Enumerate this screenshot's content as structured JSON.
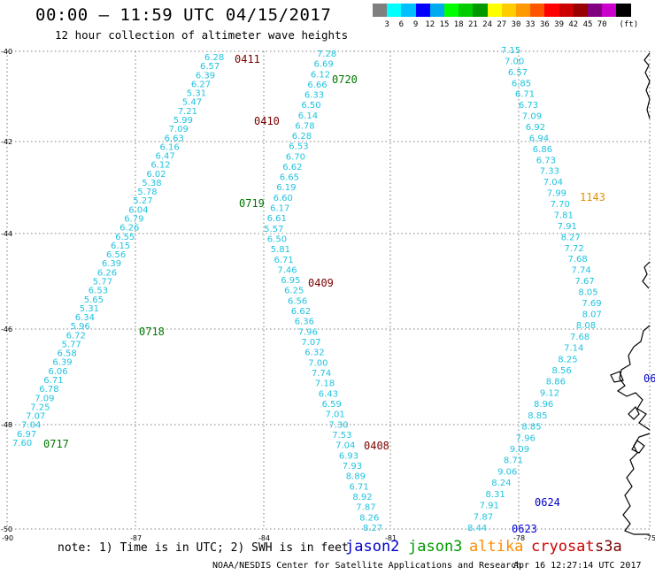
{
  "header": {
    "title": "00:00 – 11:59 UTC 04/15/2017",
    "subtitle": "12 hour collection of altimeter wave heights"
  },
  "color_scale": {
    "unit": "(ft)",
    "colors": [
      "#7f7f7f",
      "#00ffff",
      "#00bfff",
      "#0000ff",
      "#00aaee",
      "#00ff00",
      "#00cc00",
      "#009900",
      "#ffff00",
      "#ffcc00",
      "#ff9900",
      "#ff5500",
      "#ff0000",
      "#cc0000",
      "#990000",
      "#800080",
      "#cc00cc",
      "#000000"
    ],
    "labels": [
      "3",
      "6",
      "9",
      "12",
      "15",
      "18",
      "21",
      "24",
      "27",
      "30",
      "33",
      "36",
      "39",
      "42",
      "45",
      "70"
    ]
  },
  "map": {
    "lat_labels": [
      "-40",
      "-42",
      "-44",
      "-46",
      "-48",
      "-50"
    ],
    "lon_labels": [
      "-90",
      "-87",
      "-84",
      "-81",
      "-78",
      "-75"
    ],
    "tracks": [
      {
        "name": "track-a",
        "color": "#1fc3df",
        "values": [
          "6.28",
          "6.57",
          "6.39",
          "6.27",
          "5.31",
          "5.47",
          "7.21",
          "5.99",
          "7.09",
          "6.63",
          "6.16",
          "6.47",
          "6.12",
          "6.02",
          "5.38",
          "5.78",
          "5.27",
          "6.04",
          "6.79",
          "6.26",
          "6.55",
          "6.15",
          "6.56",
          "6.39",
          "6.26",
          "5.77",
          "6.53",
          "5.65",
          "5.31",
          "6.34",
          "5.96",
          "6.72",
          "5.77",
          "6.58",
          "6.39",
          "6.06",
          "6.71",
          "6.78",
          "7.09",
          "7.25",
          "7.07",
          "7.04",
          "6.97",
          "7.60"
        ]
      },
      {
        "name": "track-b",
        "color": "#1fc3df",
        "values": [
          "7.28",
          "6.69",
          "6.12",
          "6.66",
          "6.33",
          "6.50",
          "6.14",
          "6.78",
          "6.28",
          "6.53",
          "6.70",
          "6.62",
          "6.65",
          "6.19",
          "6.60",
          "6.17",
          "6.61",
          "5.57",
          "6.50",
          "5.81",
          "6.71",
          "7.46",
          "6.95",
          "6.25",
          "6.56",
          "6.62",
          "6.36",
          "7.96",
          "7.07",
          "6.32",
          "7.00",
          "7.74",
          "7.18",
          "6.43",
          "6.59",
          "7.01",
          "7.30",
          "7.53",
          "7.04",
          "6.93",
          "7.93",
          "8.89",
          "6.71",
          "8.92",
          "7.87",
          "8.26",
          "8.27"
        ]
      },
      {
        "name": "track-c",
        "color": "#1fc3df",
        "values": [
          "7.15",
          "7.00",
          "6.57",
          "6.85",
          "6.71",
          "6.73",
          "7.09",
          "6.92",
          "6.94",
          "6.86",
          "6.73",
          "7.33",
          "7.04",
          "7.99",
          "7.70",
          "7.81",
          "7.91",
          "8.27",
          "7.72",
          "7.68",
          "7.74",
          "7.67",
          "8.05",
          "7.69",
          "8.07",
          "8.08",
          "7.68",
          "7.14",
          "8.25",
          "8.56",
          "8.86",
          "9.12",
          "8.96",
          "8.85",
          "8.85",
          "7.96",
          "9.09",
          "8.71",
          "9.06",
          "8.24",
          "8.31",
          "7.91",
          "7.87",
          "8.44"
        ]
      }
    ],
    "time_labels": [
      {
        "text": "0411",
        "color": "#7a0000"
      },
      {
        "text": "0410",
        "color": "#7a0000"
      },
      {
        "text": "0720",
        "color": "#007700"
      },
      {
        "text": "0719",
        "color": "#007700"
      },
      {
        "text": "0409",
        "color": "#7a0000"
      },
      {
        "text": "0718",
        "color": "#007700"
      },
      {
        "text": "0717",
        "color": "#007700"
      },
      {
        "text": "0408",
        "color": "#7a0000"
      },
      {
        "text": "1143",
        "color": "#e09000"
      },
      {
        "text": "0624",
        "color": "#0000cc"
      },
      {
        "text": "0623",
        "color": "#0000cc"
      },
      {
        "text": "06",
        "color": "#0000cc"
      }
    ]
  },
  "footer": {
    "note": "note: 1) Time is in UTC; 2) SWH is in feet",
    "legend": [
      {
        "name": "jason2",
        "color": "#0000cc"
      },
      {
        "name": "jason3",
        "color": "#009900"
      },
      {
        "name": "altika",
        "color": "#ff8c00"
      },
      {
        "name": "cryosat",
        "color": "#cc0000"
      },
      {
        "name": "s3a",
        "color": "#7a0000"
      }
    ],
    "credit": "NOAA/NESDIS Center for Satellite Applications and Research",
    "timestamp": "Apr 16 12:27:14 UTC 2017"
  }
}
